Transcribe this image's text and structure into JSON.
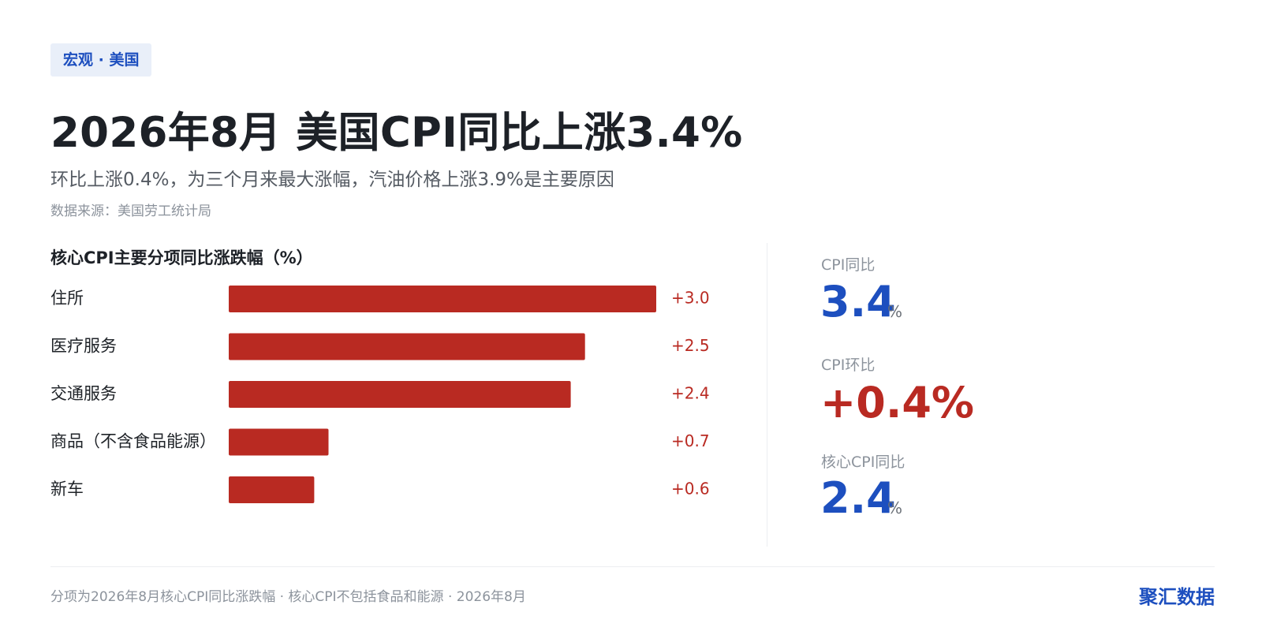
{
  "tag": "宏观 · 美国",
  "title": "2026年8月 美国CPI同比上涨3.4%",
  "subtitle": "环比上涨0.4%，为三个月来最大涨幅，汽油价格上涨3.9%是主要原因",
  "source": "数据来源：美国劳工统计局",
  "chart_data": {
    "type": "bar",
    "orientation": "horizontal",
    "title": "核心CPI主要分项同比涨跌幅（%）",
    "categories": [
      "住所",
      "医疗服务",
      "交通服务",
      "商品（不含食品能源）",
      "新车"
    ],
    "values": [
      3.0,
      2.5,
      2.4,
      0.7,
      0.6
    ],
    "value_labels": [
      "+3.0",
      "+2.5",
      "+2.4",
      "+0.7",
      "+0.6"
    ],
    "xlim": [
      0,
      3.0
    ],
    "grid": false,
    "bar_color": "#b92a22"
  },
  "kpis": [
    {
      "label": "CPI同比",
      "value": "3.4",
      "unit": "%"
    },
    {
      "label": "CPI环比",
      "value": "+0.4%",
      "unit": ""
    },
    {
      "label": "核心CPI同比",
      "value": "2.4",
      "unit": "%"
    }
  ],
  "footnote": "分项为2026年8月核心CPI同比涨跌幅 · 核心CPI不包括食品和能源 · 2026年8月",
  "brand": "聚汇数据",
  "colors": {
    "accent_blue": "#1d4fbf",
    "accent_red": "#b92a22",
    "tag_bg": "#e9eff9"
  }
}
